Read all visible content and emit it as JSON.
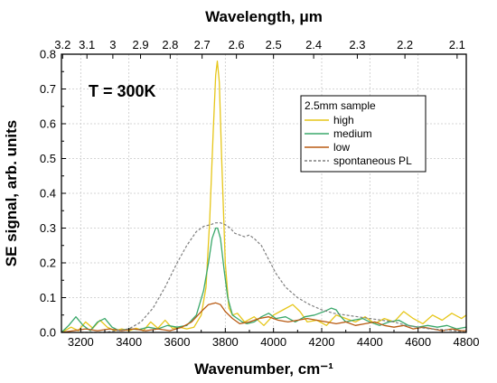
{
  "chart_data": {
    "type": "line",
    "xlabel": "Wavenumber, cm⁻¹",
    "ylabel": "SE signal, arb. units",
    "x2label": "Wavelength, μm",
    "xlim": [
      3120,
      4800
    ],
    "ylim": [
      0,
      0.8
    ],
    "grid": true,
    "annotation": "T = 300K",
    "x_ticks": [
      3200,
      3400,
      3600,
      3800,
      4000,
      4200,
      4400,
      4600,
      4800
    ],
    "y_ticks": [
      0.0,
      0.1,
      0.2,
      0.3,
      0.4,
      0.5,
      0.6,
      0.7,
      0.8
    ],
    "top_ticks": [
      {
        "label": "3.2",
        "wavelength_um": 3.2
      },
      {
        "label": "3.1",
        "wavelength_um": 3.1
      },
      {
        "label": "3",
        "wavelength_um": 3.0
      },
      {
        "label": "2.9",
        "wavelength_um": 2.9
      },
      {
        "label": "2.8",
        "wavelength_um": 2.8
      },
      {
        "label": "2.7",
        "wavelength_um": 2.7
      },
      {
        "label": "2.6",
        "wavelength_um": 2.6
      },
      {
        "label": "2.5",
        "wavelength_um": 2.5
      },
      {
        "label": "2.4",
        "wavelength_um": 2.4
      },
      {
        "label": "2.3",
        "wavelength_um": 2.3
      },
      {
        "label": "2.2",
        "wavelength_um": 2.2
      },
      {
        "label": "2.1",
        "wavelength_um": 2.1
      }
    ],
    "legend": {
      "title": "2.5mm sample",
      "placement": "center-right"
    },
    "series": [
      {
        "name": "high",
        "color": "#e6c619",
        "style": "solid",
        "x": [
          3120,
          3160,
          3190,
          3220,
          3250,
          3280,
          3310,
          3340,
          3370,
          3400,
          3430,
          3460,
          3490,
          3520,
          3550,
          3580,
          3610,
          3640,
          3670,
          3700,
          3720,
          3735,
          3750,
          3760,
          3767,
          3775,
          3785,
          3800,
          3815,
          3830,
          3850,
          3880,
          3920,
          3960,
          4000,
          4040,
          4080,
          4110,
          4140,
          4180,
          4220,
          4260,
          4300,
          4340,
          4380,
          4420,
          4460,
          4500,
          4540,
          4580,
          4620,
          4660,
          4700,
          4740,
          4780,
          4800
        ],
        "y": [
          0.0,
          0.015,
          0.005,
          0.03,
          0.012,
          0.035,
          0.015,
          0.005,
          0.01,
          0.005,
          0.012,
          0.005,
          0.03,
          0.012,
          0.035,
          0.012,
          0.015,
          0.01,
          0.015,
          0.05,
          0.13,
          0.32,
          0.58,
          0.74,
          0.78,
          0.72,
          0.5,
          0.2,
          0.07,
          0.05,
          0.055,
          0.03,
          0.045,
          0.02,
          0.05,
          0.065,
          0.08,
          0.06,
          0.03,
          0.035,
          0.02,
          0.05,
          0.04,
          0.03,
          0.045,
          0.025,
          0.04,
          0.03,
          0.06,
          0.04,
          0.025,
          0.05,
          0.035,
          0.055,
          0.04,
          0.05
        ]
      },
      {
        "name": "medium",
        "color": "#3aa86b",
        "style": "solid",
        "x": [
          3120,
          3150,
          3180,
          3210,
          3240,
          3270,
          3300,
          3330,
          3360,
          3400,
          3440,
          3480,
          3520,
          3560,
          3600,
          3640,
          3680,
          3710,
          3730,
          3745,
          3760,
          3768,
          3780,
          3795,
          3810,
          3830,
          3850,
          3870,
          3890,
          3920,
          3950,
          3980,
          4010,
          4050,
          4090,
          4130,
          4170,
          4210,
          4240,
          4260,
          4280,
          4300,
          4330,
          4370,
          4400,
          4440,
          4480,
          4520,
          4560,
          4600,
          4640,
          4680,
          4720,
          4760,
          4800
        ],
        "y": [
          0.0,
          0.02,
          0.045,
          0.02,
          0.005,
          0.03,
          0.04,
          0.015,
          0.005,
          0.01,
          0.008,
          0.015,
          0.01,
          0.02,
          0.015,
          0.02,
          0.05,
          0.12,
          0.2,
          0.27,
          0.3,
          0.3,
          0.27,
          0.18,
          0.1,
          0.05,
          0.04,
          0.03,
          0.025,
          0.03,
          0.045,
          0.055,
          0.04,
          0.045,
          0.03,
          0.045,
          0.05,
          0.06,
          0.07,
          0.065,
          0.045,
          0.03,
          0.035,
          0.04,
          0.03,
          0.02,
          0.03,
          0.035,
          0.02,
          0.015,
          0.02,
          0.015,
          0.02,
          0.01,
          0.015
        ]
      },
      {
        "name": "low",
        "color": "#b85a12",
        "style": "solid",
        "x": [
          3120,
          3170,
          3220,
          3270,
          3320,
          3370,
          3420,
          3470,
          3520,
          3570,
          3620,
          3660,
          3700,
          3730,
          3760,
          3780,
          3800,
          3830,
          3860,
          3900,
          3940,
          3980,
          4020,
          4060,
          4100,
          4140,
          4180,
          4220,
          4260,
          4300,
          4340,
          4380,
          4420,
          4460,
          4500,
          4540,
          4580,
          4620,
          4660,
          4700,
          4740,
          4780,
          4800
        ],
        "y": [
          0.0,
          0.005,
          0.01,
          0.005,
          0.01,
          0.005,
          0.01,
          0.005,
          0.01,
          0.005,
          0.015,
          0.03,
          0.06,
          0.08,
          0.085,
          0.08,
          0.06,
          0.04,
          0.025,
          0.03,
          0.04,
          0.045,
          0.035,
          0.03,
          0.035,
          0.04,
          0.035,
          0.03,
          0.025,
          0.03,
          0.02,
          0.025,
          0.03,
          0.02,
          0.015,
          0.02,
          0.01,
          0.015,
          0.01,
          0.005,
          0.01,
          0.005,
          0.005
        ]
      },
      {
        "name": "spontaneous PL",
        "color": "#7f7f7f",
        "style": "dashed",
        "x": [
          3200,
          3300,
          3400,
          3450,
          3500,
          3550,
          3600,
          3640,
          3680,
          3710,
          3740,
          3760,
          3780,
          3800,
          3820,
          3840,
          3860,
          3880,
          3900,
          3920,
          3950,
          3980,
          4010,
          4050,
          4100,
          4150,
          4200,
          4250,
          4300,
          4350,
          4400,
          4450,
          4500,
          4550,
          4600,
          4650,
          4700,
          4750,
          4800
        ],
        "y": [
          0.0,
          0.0,
          0.01,
          0.03,
          0.07,
          0.13,
          0.2,
          0.25,
          0.29,
          0.305,
          0.31,
          0.315,
          0.315,
          0.31,
          0.3,
          0.285,
          0.28,
          0.275,
          0.28,
          0.27,
          0.25,
          0.21,
          0.17,
          0.13,
          0.1,
          0.08,
          0.065,
          0.055,
          0.05,
          0.045,
          0.04,
          0.035,
          0.03,
          0.02,
          0.015,
          0.01,
          0.008,
          0.005,
          0.0
        ]
      }
    ]
  }
}
